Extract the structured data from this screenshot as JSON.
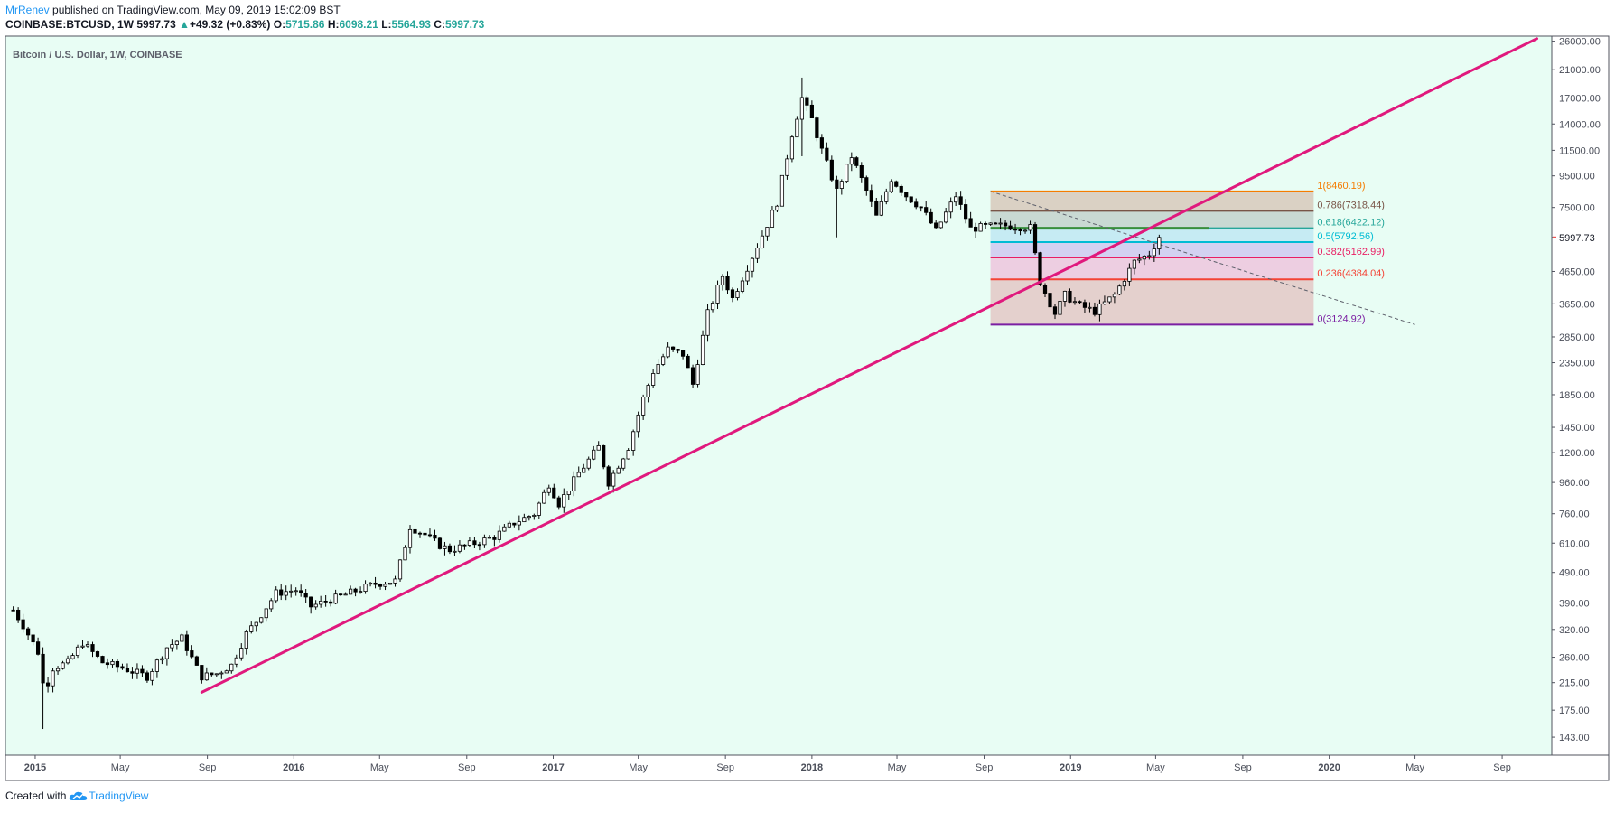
{
  "header": {
    "author": "MrRenev",
    "published": "published on TradingView.com, May 09, 2019 15:02:09 BST"
  },
  "ohlc": {
    "symbol": "COINBASE:BTCUSD, 1W",
    "last": "5997.73",
    "triangle": "▲",
    "change": "+49.32 (+0.83%)",
    "o_label": "O:",
    "o": "5715.86",
    "h_label": "H:",
    "h": "6098.21",
    "l_label": "L:",
    "l": "5564.93",
    "c_label": "C:",
    "c": "5997.73"
  },
  "footer": {
    "created": "Created with",
    "brand": "TradingView",
    "logo_icon": "tradingview-cloud-icon"
  },
  "colors": {
    "pane_bg": "#e8fdf4",
    "trendline": "#e0197d",
    "candle": "#000000",
    "last_price_marker": "#ef5350"
  },
  "chart_data": {
    "type": "candlestick",
    "title": "Bitcoin / U.S. Dollar, 1W, COINBASE",
    "xlabel": "",
    "ylabel": "",
    "y_scale": "log",
    "ylim": [
      125,
      27000
    ],
    "xlim": [
      "2014-11-20",
      "2020-11-10"
    ],
    "grid": false,
    "last_price": 5997.73,
    "y_ticks": [
      "26000.00",
      "21000.00",
      "17000.00",
      "14000.00",
      "11500.00",
      "9500.00",
      "7500.00",
      "5997.73",
      "4650.00",
      "3650.00",
      "2850.00",
      "2350.00",
      "1850.00",
      "1450.00",
      "1200.00",
      "960.00",
      "760.00",
      "610.00",
      "490.00",
      "390.00",
      "320.00",
      "260.00",
      "215.00",
      "175.00",
      "143.00"
    ],
    "x_ticks": [
      {
        "label": "2015",
        "date": "2015-01-01",
        "bold": true
      },
      {
        "label": "May",
        "date": "2015-05-01"
      },
      {
        "label": "Sep",
        "date": "2015-09-01"
      },
      {
        "label": "2016",
        "date": "2016-01-01",
        "bold": true
      },
      {
        "label": "May",
        "date": "2016-05-01"
      },
      {
        "label": "Sep",
        "date": "2016-09-01"
      },
      {
        "label": "2017",
        "date": "2017-01-01",
        "bold": true
      },
      {
        "label": "May",
        "date": "2017-05-01"
      },
      {
        "label": "Sep",
        "date": "2017-09-01"
      },
      {
        "label": "2018",
        "date": "2018-01-01",
        "bold": true
      },
      {
        "label": "May",
        "date": "2018-05-01"
      },
      {
        "label": "Sep",
        "date": "2018-09-01"
      },
      {
        "label": "2019",
        "date": "2019-01-01",
        "bold": true
      },
      {
        "label": "May",
        "date": "2019-05-01"
      },
      {
        "label": "Sep",
        "date": "2019-09-01"
      },
      {
        "label": "2020",
        "date": "2020-01-01",
        "bold": true
      },
      {
        "label": "May",
        "date": "2020-05-01"
      },
      {
        "label": "Sep",
        "date": "2020-09-01"
      }
    ],
    "close_series": [
      [
        "2014-12-01",
        370
      ],
      [
        "2014-12-15",
        330
      ],
      [
        "2015-01-05",
        270
      ],
      [
        "2015-01-14",
        200
      ],
      [
        "2015-01-26",
        240
      ],
      [
        "2015-02-16",
        250
      ],
      [
        "2015-03-09",
        290
      ],
      [
        "2015-04-06",
        250
      ],
      [
        "2015-05-04",
        240
      ],
      [
        "2015-06-08",
        225
      ],
      [
        "2015-07-06",
        280
      ],
      [
        "2015-07-27",
        300
      ],
      [
        "2015-08-17",
        240
      ],
      [
        "2015-08-24",
        225
      ],
      [
        "2015-09-14",
        230
      ],
      [
        "2015-10-05",
        245
      ],
      [
        "2015-10-26",
        310
      ],
      [
        "2015-11-09",
        340
      ],
      [
        "2015-12-07",
        420
      ],
      [
        "2016-01-04",
        430
      ],
      [
        "2016-01-25",
        380
      ],
      [
        "2016-03-07",
        410
      ],
      [
        "2016-04-25",
        450
      ],
      [
        "2016-05-23",
        460
      ],
      [
        "2016-06-06",
        600
      ],
      [
        "2016-06-13",
        690
      ],
      [
        "2016-07-04",
        650
      ],
      [
        "2016-07-25",
        600
      ],
      [
        "2016-08-08",
        580
      ],
      [
        "2016-09-12",
        610
      ],
      [
        "2016-10-10",
        640
      ],
      [
        "2016-11-07",
        710
      ],
      [
        "2016-12-05",
        760
      ],
      [
        "2016-12-26",
        950
      ],
      [
        "2017-01-09",
        820
      ],
      [
        "2017-02-06",
        1030
      ],
      [
        "2017-03-06",
        1250
      ],
      [
        "2017-03-20",
        960
      ],
      [
        "2017-04-17",
        1250
      ],
      [
        "2017-05-08",
        1800
      ],
      [
        "2017-05-22",
        2200
      ],
      [
        "2017-06-12",
        2600
      ],
      [
        "2017-07-03",
        2500
      ],
      [
        "2017-07-17",
        2000
      ],
      [
        "2017-08-07",
        3400
      ],
      [
        "2017-08-28",
        4500
      ],
      [
        "2017-09-11",
        3800
      ],
      [
        "2017-10-02",
        4800
      ],
      [
        "2017-10-23",
        6100
      ],
      [
        "2017-11-13",
        7800
      ],
      [
        "2017-12-04",
        13000
      ],
      [
        "2017-12-18",
        17000
      ],
      [
        "2018-01-01",
        14500
      ],
      [
        "2018-01-15",
        11500
      ],
      [
        "2018-02-05",
        8500
      ],
      [
        "2018-02-26",
        11000
      ],
      [
        "2018-03-19",
        8500
      ],
      [
        "2018-04-02",
        7000
      ],
      [
        "2018-04-23",
        9300
      ],
      [
        "2018-05-14",
        8200
      ],
      [
        "2018-06-04",
        7500
      ],
      [
        "2018-06-25",
        6300
      ],
      [
        "2018-07-23",
        8200
      ],
      [
        "2018-08-13",
        6400
      ],
      [
        "2018-09-03",
        6500
      ],
      [
        "2018-10-01",
        6550
      ],
      [
        "2018-11-05",
        6450
      ],
      [
        "2018-11-19",
        4300
      ],
      [
        "2018-12-10",
        3400
      ],
      [
        "2018-12-24",
        3900
      ],
      [
        "2019-01-14",
        3600
      ],
      [
        "2019-02-04",
        3450
      ],
      [
        "2019-03-04",
        3900
      ],
      [
        "2019-04-01",
        5000
      ],
      [
        "2019-04-22",
        5300
      ],
      [
        "2019-05-06",
        5997.73
      ]
    ],
    "extremes": [
      [
        "2015-01-14",
        152,
        280
      ],
      [
        "2017-12-18",
        11000,
        19800
      ],
      [
        "2018-02-05",
        6000,
        9500
      ],
      [
        "2018-12-17",
        3124.92,
        3900
      ]
    ],
    "drawings": {
      "trendline": {
        "from": [
          "2015-08-24",
          200
        ],
        "to": [
          "2020-10-20",
          26500
        ],
        "width": 3
      },
      "dashed_diagonal": {
        "from": [
          "2018-09-10",
          8460.19
        ],
        "to": [
          "2020-05-01",
          3124.92
        ]
      },
      "fib_retracement": {
        "x_start": "2018-09-10",
        "x_end": "2019-12-10",
        "levels": [
          {
            "ratio": 1,
            "label": "1(8460.19)",
            "price": 8460.19,
            "color": "#f57c00"
          },
          {
            "ratio": 0.786,
            "label": "0.786(7318.44)",
            "price": 7318.44,
            "color": "#795548"
          },
          {
            "ratio": 0.618,
            "label": "0.618(6422.12)",
            "price": 6422.12,
            "color": "#26a69a"
          },
          {
            "ratio": 0.5,
            "label": "0.5(5792.56)",
            "price": 5792.56,
            "color": "#00bcd4"
          },
          {
            "ratio": 0.382,
            "label": "0.382(5162.99)",
            "price": 5162.99,
            "color": "#e91e63"
          },
          {
            "ratio": 0.236,
            "label": "0.236(4384.04)",
            "price": 4384.04,
            "color": "#f44336"
          },
          {
            "ratio": 0,
            "label": "0(3124.92)",
            "price": 3124.92,
            "color": "#7b1fa2"
          }
        ],
        "band_fills": [
          "#d7c9bb",
          "#c3d2cc",
          "#bfe7f2",
          "#cfc9f0",
          "#edc5dd",
          "#e3c8c6"
        ]
      },
      "resistance_line": {
        "price": 6422.12,
        "from": "2018-09-10",
        "to": "2019-07-15",
        "color": "#388e3c"
      }
    }
  }
}
